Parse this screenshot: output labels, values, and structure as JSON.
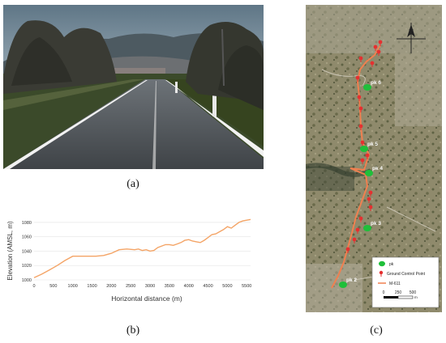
{
  "captions": {
    "a": "(a)",
    "b": "(b)",
    "c": "(c)"
  },
  "chart_data": {
    "type": "line",
    "xlabel": "Horizontal distance  (m)",
    "ylabel": "Elevation (AMSL, m)",
    "xlim": [
      0,
      5600
    ],
    "ylim": [
      1000,
      1090
    ],
    "xticks": [
      0,
      500,
      1000,
      1500,
      2000,
      2500,
      3000,
      3500,
      4000,
      4500,
      5000,
      5500
    ],
    "yticks": [
      1000,
      1020,
      1040,
      1060,
      1080
    ],
    "grid": true,
    "line_color": "#f4a466",
    "x": [
      0,
      200,
      400,
      600,
      800,
      1000,
      1200,
      1400,
      1600,
      1800,
      2000,
      2200,
      2400,
      2600,
      2700,
      2800,
      2900,
      3000,
      3100,
      3200,
      3400,
      3500,
      3600,
      3700,
      3800,
      3900,
      4000,
      4100,
      4200,
      4300,
      4400,
      4500,
      4600,
      4700,
      4800,
      4900,
      5000,
      5100,
      5200,
      5300,
      5400,
      5500,
      5600
    ],
    "y": [
      1003,
      1008,
      1014,
      1020,
      1027,
      1033,
      1033,
      1033,
      1033,
      1034,
      1037,
      1042,
      1043,
      1042,
      1043,
      1041,
      1042,
      1040,
      1041,
      1045,
      1049,
      1049,
      1048,
      1050,
      1052,
      1055,
      1056,
      1054,
      1053,
      1052,
      1055,
      1059,
      1063,
      1064,
      1067,
      1070,
      1074,
      1072,
      1076,
      1080,
      1082,
      1083,
      1084
    ]
  },
  "map": {
    "north_label": "N",
    "pk_labels": [
      "pk 6",
      "pk 5",
      "pk 4",
      "pk 3",
      "pk 2"
    ],
    "legend": {
      "pk": "pk",
      "gcp": "Ground Control Point",
      "road": "M-611",
      "scale_ticks": [
        "0",
        "250",
        "500"
      ],
      "scale_unit": "m"
    },
    "colors": {
      "pk": "#1fbf3a",
      "gcp": "#e53030",
      "road": "#f08050"
    }
  }
}
